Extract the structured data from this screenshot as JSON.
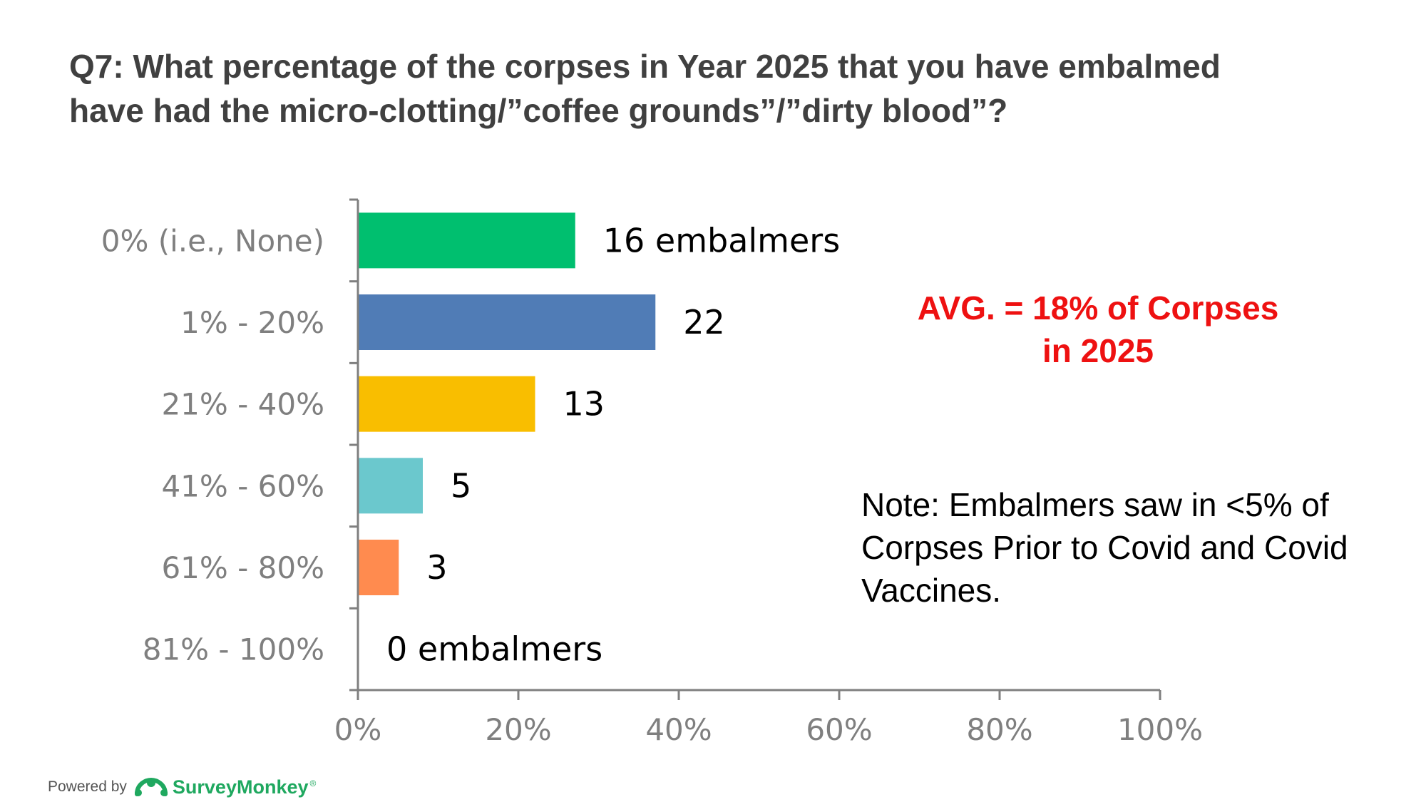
{
  "title": {
    "line1": "Q7: What percentage of the corpses in Year 2025 that you have embalmed",
    "line2": "have had the micro-clotting/”coffee grounds”/”dirty blood”?"
  },
  "annotations": {
    "avg_line1": "AVG. = 18% of Corpses",
    "avg_line2": "in 2025",
    "note": "Note:  Embalmers saw in <5% of Corpses Prior to Covid and Covid Vaccines."
  },
  "footer": {
    "powered_by": "Powered by",
    "brand": "SurveyMonkey",
    "brand_mark": "®"
  },
  "colors": {
    "avg_text": "#ee1111",
    "brand": "#1fa85f",
    "axis": "#7f7f7f",
    "tick_text": "#7f7f7f"
  },
  "chart_data": {
    "type": "bar",
    "orientation": "horizontal",
    "categories": [
      "0% (i.e., None)",
      "1% - 20%",
      "21% - 40%",
      "41% - 60%",
      "61% - 80%",
      "81% - 100%"
    ],
    "values": [
      27,
      37,
      22,
      8,
      5,
      0
    ],
    "value_unit": "% of respondents",
    "data_labels": [
      "16 embalmers",
      "22",
      "13",
      "5",
      "3",
      "0 embalmers"
    ],
    "bar_colors": [
      "#00bf6f",
      "#507cb6",
      "#f9be00",
      "#6bc8cd",
      "#ff8b4f",
      "#c6c6c6"
    ],
    "x_ticks": [
      "0%",
      "20%",
      "40%",
      "60%",
      "80%",
      "100%"
    ],
    "xlim": [
      0,
      100
    ],
    "xlabel": "",
    "ylabel": "",
    "grid": false,
    "legend": "none"
  }
}
